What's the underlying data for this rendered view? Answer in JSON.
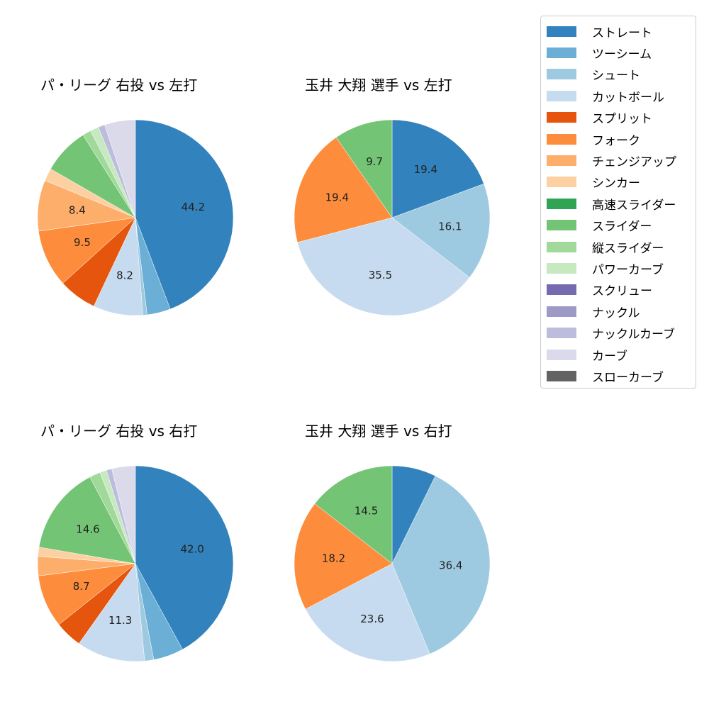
{
  "colors": {
    "ストレート": "#3182bd",
    "ツーシーム": "#6baed6",
    "シュート": "#9ecae1",
    "カットボール": "#c6dbef",
    "スプリット": "#e6550d",
    "フォーク": "#fd8d3c",
    "チェンジアップ": "#fdae6b",
    "シンカー": "#fdd0a2",
    "高速スライダー": "#31a354",
    "スライダー": "#74c476",
    "縦スライダー": "#a1d99b",
    "パワーカーブ": "#c7e9c0",
    "スクリュー": "#756bb1",
    "ナックル": "#9e9ac8",
    "ナックルカーブ": "#bcbddc",
    "カーブ": "#dadaeb",
    "スローカーブ": "#636363"
  },
  "legend": {
    "items": [
      "ストレート",
      "ツーシーム",
      "シュート",
      "カットボール",
      "スプリット",
      "フォーク",
      "チェンジアップ",
      "シンカー",
      "高速スライダー",
      "スライダー",
      "縦スライダー",
      "パワーカーブ",
      "スクリュー",
      "ナックル",
      "ナックルカーブ",
      "カーブ",
      "スローカーブ"
    ]
  },
  "chart_data": [
    {
      "type": "pie",
      "title": "パ・リーグ 右投 vs 左打",
      "start_angle": 90,
      "direction": "clockwise",
      "label_threshold": 8,
      "slices": [
        {
          "label": "ストレート",
          "value": 44.2
        },
        {
          "label": "ツーシーム",
          "value": 3.9
        },
        {
          "label": "シュート",
          "value": 0.7
        },
        {
          "label": "カットボール",
          "value": 8.2
        },
        {
          "label": "スプリット",
          "value": 6.3
        },
        {
          "label": "フォーク",
          "value": 9.5
        },
        {
          "label": "チェンジアップ",
          "value": 8.4
        },
        {
          "label": "シンカー",
          "value": 2.1
        },
        {
          "label": "スライダー",
          "value": 7.7
        },
        {
          "label": "縦スライダー",
          "value": 1.4
        },
        {
          "label": "パワーカーブ",
          "value": 1.4
        },
        {
          "label": "ナックルカーブ",
          "value": 1.1
        },
        {
          "label": "カーブ",
          "value": 5.1
        }
      ]
    },
    {
      "type": "pie",
      "title": "玉井 大翔 選手 vs 左打",
      "start_angle": 90,
      "direction": "clockwise",
      "label_threshold": 8,
      "slices": [
        {
          "label": "ストレート",
          "value": 19.4
        },
        {
          "label": "シュート",
          "value": 16.1
        },
        {
          "label": "カットボール",
          "value": 35.5
        },
        {
          "label": "フォーク",
          "value": 19.4
        },
        {
          "label": "スライダー",
          "value": 9.7
        }
      ]
    },
    {
      "type": "pie",
      "title": "パ・リーグ 右投 vs 右打",
      "start_angle": 90,
      "direction": "clockwise",
      "label_threshold": 8,
      "slices": [
        {
          "label": "ストレート",
          "value": 42.0
        },
        {
          "label": "ツーシーム",
          "value": 5.0
        },
        {
          "label": "シュート",
          "value": 1.5
        },
        {
          "label": "カットボール",
          "value": 11.3
        },
        {
          "label": "スプリット",
          "value": 4.5
        },
        {
          "label": "フォーク",
          "value": 8.7
        },
        {
          "label": "チェンジアップ",
          "value": 3.2
        },
        {
          "label": "シンカー",
          "value": 1.5
        },
        {
          "label": "スライダー",
          "value": 14.6
        },
        {
          "label": "縦スライダー",
          "value": 1.8
        },
        {
          "label": "パワーカーブ",
          "value": 1.1
        },
        {
          "label": "ナックルカーブ",
          "value": 0.9
        },
        {
          "label": "カーブ",
          "value": 3.9
        }
      ]
    },
    {
      "type": "pie",
      "title": "玉井 大翔 選手 vs 右打",
      "start_angle": 90,
      "direction": "clockwise",
      "label_threshold": 8,
      "slices": [
        {
          "label": "ストレート",
          "value": 7.3
        },
        {
          "label": "シュート",
          "value": 36.4
        },
        {
          "label": "カットボール",
          "value": 23.6
        },
        {
          "label": "フォーク",
          "value": 18.2
        },
        {
          "label": "スライダー",
          "value": 14.5
        }
      ]
    }
  ]
}
